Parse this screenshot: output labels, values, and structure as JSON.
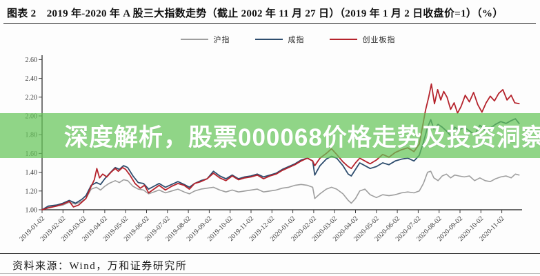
{
  "header": {
    "title": "图表 2　2019 年-2020 年 A 股三大指数走势（截止 2002 年 11 月 27 日）（2019 年 1 月 2 日收盘价=1）（%）"
  },
  "overlay": {
    "text": "深度解析，股票000068价格走势及投资洞察",
    "band_color": "rgba(101,197,89,0.72)",
    "text_color": "#ffffff"
  },
  "footer": {
    "source": "资料来源：Wind，万和证券研究所"
  },
  "chart_data": {
    "type": "line",
    "title": "2019年-2020年A股三大指数走势",
    "xlabel": "",
    "ylabel": "",
    "grid": false,
    "legend_position": "top-center",
    "ylim": [
      1.0,
      2.6
    ],
    "y_ticks": [
      "1.00",
      "1.20",
      "1.40",
      "1.60",
      "1.80",
      "2.00",
      "2.20",
      "2.40",
      "2.60"
    ],
    "x_tick_labels": [
      "2019-01-02",
      "2019-02-02",
      "2019-03-02",
      "2019-04-02",
      "2019-05-02",
      "2019-06-02",
      "2019-07-02",
      "2019-08-02",
      "2019-09-02",
      "2019-10-02",
      "2019-11-02",
      "2019-12-02",
      "2020-01-02",
      "2020-02-02",
      "2020-03-02",
      "2020-04-02",
      "2020-05-02",
      "2020-06-02",
      "2020-07-02",
      "2020-08-02",
      "2020-09-02",
      "2020-10-02",
      "2020-11-02"
    ],
    "x_unit": "months since 2019-01-02",
    "series": [
      {
        "name": "沪指",
        "color": "#9e9e9e",
        "width": 1.6,
        "points": [
          [
            0,
            1.0
          ],
          [
            0.3,
            1.03
          ],
          [
            0.7,
            1.04
          ],
          [
            1.0,
            1.05
          ],
          [
            1.3,
            1.08
          ],
          [
            1.6,
            1.06
          ],
          [
            1.9,
            1.09
          ],
          [
            2.1,
            1.12
          ],
          [
            2.35,
            1.22
          ],
          [
            2.6,
            1.24
          ],
          [
            2.8,
            1.21
          ],
          [
            3.0,
            1.25
          ],
          [
            3.2,
            1.28
          ],
          [
            3.5,
            1.31
          ],
          [
            3.7,
            1.29
          ],
          [
            3.9,
            1.32
          ],
          [
            4.1,
            1.31
          ],
          [
            4.35,
            1.25
          ],
          [
            4.6,
            1.22
          ],
          [
            4.85,
            1.21
          ],
          [
            5.1,
            1.17
          ],
          [
            5.35,
            1.19
          ],
          [
            5.6,
            1.21
          ],
          [
            5.9,
            1.18
          ],
          [
            6.2,
            1.2
          ],
          [
            6.5,
            1.22
          ],
          [
            6.8,
            1.19
          ],
          [
            7.05,
            1.17
          ],
          [
            7.3,
            1.2
          ],
          [
            7.6,
            1.22
          ],
          [
            7.9,
            1.23
          ],
          [
            8.2,
            1.24
          ],
          [
            8.5,
            1.21
          ],
          [
            8.8,
            1.19
          ],
          [
            9.1,
            1.21
          ],
          [
            9.4,
            1.19
          ],
          [
            9.7,
            1.2
          ],
          [
            10.0,
            1.21
          ],
          [
            10.3,
            1.22
          ],
          [
            10.6,
            1.19
          ],
          [
            10.9,
            1.2
          ],
          [
            11.2,
            1.21
          ],
          [
            11.5,
            1.23
          ],
          [
            11.8,
            1.24
          ],
          [
            12.1,
            1.26
          ],
          [
            12.4,
            1.27
          ],
          [
            12.7,
            1.26
          ],
          [
            12.95,
            1.24
          ],
          [
            13.05,
            1.12
          ],
          [
            13.3,
            1.17
          ],
          [
            13.6,
            1.22
          ],
          [
            13.85,
            1.24
          ],
          [
            14.1,
            1.22
          ],
          [
            14.4,
            1.17
          ],
          [
            14.65,
            1.1
          ],
          [
            14.8,
            1.07
          ],
          [
            15.0,
            1.12
          ],
          [
            15.2,
            1.2
          ],
          [
            15.45,
            1.22
          ],
          [
            15.7,
            1.16
          ],
          [
            16.0,
            1.13
          ],
          [
            16.3,
            1.16
          ],
          [
            16.6,
            1.15
          ],
          [
            16.9,
            1.16
          ],
          [
            17.2,
            1.18
          ],
          [
            17.5,
            1.19
          ],
          [
            17.8,
            1.18
          ],
          [
            18.05,
            1.2
          ],
          [
            18.25,
            1.28
          ],
          [
            18.45,
            1.4
          ],
          [
            18.6,
            1.41
          ],
          [
            18.75,
            1.34
          ],
          [
            18.95,
            1.31
          ],
          [
            19.15,
            1.36
          ],
          [
            19.35,
            1.38
          ],
          [
            19.55,
            1.34
          ],
          [
            19.75,
            1.37
          ],
          [
            19.95,
            1.36
          ],
          [
            20.2,
            1.35
          ],
          [
            20.45,
            1.36
          ],
          [
            20.7,
            1.31
          ],
          [
            20.95,
            1.34
          ],
          [
            21.2,
            1.31
          ],
          [
            21.45,
            1.3
          ],
          [
            21.7,
            1.33
          ],
          [
            21.95,
            1.35
          ],
          [
            22.2,
            1.36
          ],
          [
            22.45,
            1.34
          ],
          [
            22.65,
            1.38
          ],
          [
            22.83,
            1.37
          ]
        ]
      },
      {
        "name": "成指",
        "color": "#2e4d6e",
        "width": 1.8,
        "points": [
          [
            0,
            1.0
          ],
          [
            0.3,
            1.04
          ],
          [
            0.7,
            1.05
          ],
          [
            1.0,
            1.07
          ],
          [
            1.3,
            1.1
          ],
          [
            1.6,
            1.07
          ],
          [
            1.9,
            1.11
          ],
          [
            2.1,
            1.15
          ],
          [
            2.35,
            1.26
          ],
          [
            2.6,
            1.29
          ],
          [
            2.8,
            1.27
          ],
          [
            3.0,
            1.33
          ],
          [
            3.2,
            1.38
          ],
          [
            3.5,
            1.45
          ],
          [
            3.7,
            1.43
          ],
          [
            3.9,
            1.47
          ],
          [
            4.1,
            1.45
          ],
          [
            4.35,
            1.36
          ],
          [
            4.6,
            1.29
          ],
          [
            4.85,
            1.28
          ],
          [
            5.1,
            1.22
          ],
          [
            5.35,
            1.25
          ],
          [
            5.6,
            1.28
          ],
          [
            5.9,
            1.24
          ],
          [
            6.2,
            1.27
          ],
          [
            6.5,
            1.3
          ],
          [
            6.8,
            1.27
          ],
          [
            7.05,
            1.24
          ],
          [
            7.3,
            1.28
          ],
          [
            7.6,
            1.31
          ],
          [
            7.9,
            1.33
          ],
          [
            8.2,
            1.41
          ],
          [
            8.5,
            1.36
          ],
          [
            8.8,
            1.33
          ],
          [
            9.1,
            1.37
          ],
          [
            9.4,
            1.33
          ],
          [
            9.7,
            1.35
          ],
          [
            10.0,
            1.36
          ],
          [
            10.3,
            1.38
          ],
          [
            10.6,
            1.35
          ],
          [
            10.9,
            1.37
          ],
          [
            11.2,
            1.39
          ],
          [
            11.5,
            1.43
          ],
          [
            11.8,
            1.46
          ],
          [
            12.1,
            1.49
          ],
          [
            12.4,
            1.53
          ],
          [
            12.7,
            1.55
          ],
          [
            12.95,
            1.52
          ],
          [
            13.05,
            1.37
          ],
          [
            13.3,
            1.47
          ],
          [
            13.6,
            1.54
          ],
          [
            13.85,
            1.57
          ],
          [
            14.1,
            1.55
          ],
          [
            14.4,
            1.47
          ],
          [
            14.65,
            1.38
          ],
          [
            14.8,
            1.36
          ],
          [
            15.0,
            1.43
          ],
          [
            15.2,
            1.5
          ],
          [
            15.45,
            1.47
          ],
          [
            15.7,
            1.44
          ],
          [
            16.0,
            1.46
          ],
          [
            16.3,
            1.5
          ],
          [
            16.6,
            1.48
          ],
          [
            16.9,
            1.52
          ],
          [
            17.2,
            1.54
          ],
          [
            17.5,
            1.55
          ],
          [
            17.8,
            1.52
          ],
          [
            18.05,
            1.58
          ],
          [
            18.25,
            1.72
          ],
          [
            18.45,
            1.88
          ],
          [
            18.6,
            1.96
          ],
          [
            18.75,
            1.86
          ],
          [
            18.95,
            1.91
          ],
          [
            19.15,
            1.88
          ],
          [
            19.35,
            1.84
          ],
          [
            19.55,
            1.79
          ],
          [
            19.75,
            1.88
          ],
          [
            19.95,
            1.85
          ],
          [
            20.2,
            1.88
          ],
          [
            20.45,
            1.84
          ],
          [
            20.7,
            1.8
          ],
          [
            20.95,
            1.9
          ],
          [
            21.2,
            1.85
          ],
          [
            21.45,
            1.87
          ],
          [
            21.7,
            1.91
          ],
          [
            21.95,
            1.94
          ],
          [
            22.2,
            1.92
          ],
          [
            22.45,
            1.95
          ],
          [
            22.65,
            1.97
          ],
          [
            22.83,
            1.92
          ]
        ]
      },
      {
        "name": "创业板指",
        "color": "#b5232c",
        "width": 1.8,
        "points": [
          [
            0,
            1.0
          ],
          [
            0.3,
            1.02
          ],
          [
            0.7,
            1.04
          ],
          [
            1.0,
            1.06
          ],
          [
            1.3,
            1.09
          ],
          [
            1.5,
            1.03
          ],
          [
            1.75,
            1.05
          ],
          [
            1.9,
            1.08
          ],
          [
            2.1,
            1.12
          ],
          [
            2.35,
            1.25
          ],
          [
            2.5,
            1.32
          ],
          [
            2.62,
            1.44
          ],
          [
            2.75,
            1.34
          ],
          [
            2.9,
            1.38
          ],
          [
            3.1,
            1.35
          ],
          [
            3.3,
            1.4
          ],
          [
            3.5,
            1.44
          ],
          [
            3.65,
            1.41
          ],
          [
            3.85,
            1.45
          ],
          [
            4.0,
            1.43
          ],
          [
            4.2,
            1.37
          ],
          [
            4.45,
            1.28
          ],
          [
            4.7,
            1.23
          ],
          [
            4.9,
            1.26
          ],
          [
            5.1,
            1.18
          ],
          [
            5.35,
            1.22
          ],
          [
            5.6,
            1.26
          ],
          [
            5.9,
            1.21
          ],
          [
            6.2,
            1.25
          ],
          [
            6.5,
            1.28
          ],
          [
            6.8,
            1.26
          ],
          [
            7.05,
            1.22
          ],
          [
            7.3,
            1.28
          ],
          [
            7.6,
            1.3
          ],
          [
            7.9,
            1.33
          ],
          [
            8.2,
            1.39
          ],
          [
            8.5,
            1.34
          ],
          [
            8.8,
            1.31
          ],
          [
            9.1,
            1.36
          ],
          [
            9.4,
            1.32
          ],
          [
            9.7,
            1.34
          ],
          [
            10.0,
            1.35
          ],
          [
            10.3,
            1.37
          ],
          [
            10.6,
            1.33
          ],
          [
            10.9,
            1.36
          ],
          [
            11.2,
            1.38
          ],
          [
            11.5,
            1.42
          ],
          [
            11.8,
            1.45
          ],
          [
            12.1,
            1.48
          ],
          [
            12.4,
            1.52
          ],
          [
            12.7,
            1.55
          ],
          [
            12.95,
            1.52
          ],
          [
            13.05,
            1.47
          ],
          [
            13.3,
            1.55
          ],
          [
            13.6,
            1.6
          ],
          [
            13.85,
            1.65
          ],
          [
            14.1,
            1.59
          ],
          [
            14.4,
            1.51
          ],
          [
            14.65,
            1.46
          ],
          [
            14.8,
            1.44
          ],
          [
            15.0,
            1.5
          ],
          [
            15.2,
            1.55
          ],
          [
            15.45,
            1.52
          ],
          [
            15.7,
            1.49
          ],
          [
            16.0,
            1.53
          ],
          [
            16.3,
            1.59
          ],
          [
            16.6,
            1.56
          ],
          [
            16.9,
            1.61
          ],
          [
            17.2,
            1.64
          ],
          [
            17.5,
            1.66
          ],
          [
            17.8,
            1.62
          ],
          [
            18.05,
            1.7
          ],
          [
            18.2,
            1.88
          ],
          [
            18.35,
            2.06
          ],
          [
            18.5,
            2.2
          ],
          [
            18.63,
            2.34
          ],
          [
            18.78,
            2.13
          ],
          [
            18.93,
            2.28
          ],
          [
            19.08,
            2.17
          ],
          [
            19.22,
            2.26
          ],
          [
            19.38,
            2.2
          ],
          [
            19.55,
            2.07
          ],
          [
            19.72,
            2.14
          ],
          [
            19.88,
            2.03
          ],
          [
            20.05,
            2.1
          ],
          [
            20.25,
            2.22
          ],
          [
            20.45,
            2.15
          ],
          [
            20.65,
            2.25
          ],
          [
            20.85,
            2.12
          ],
          [
            21.05,
            2.04
          ],
          [
            21.25,
            2.14
          ],
          [
            21.45,
            2.21
          ],
          [
            21.65,
            2.16
          ],
          [
            21.85,
            2.24
          ],
          [
            22.05,
            2.28
          ],
          [
            22.25,
            2.17
          ],
          [
            22.45,
            2.22
          ],
          [
            22.62,
            2.14
          ],
          [
            22.83,
            2.13
          ]
        ]
      }
    ]
  }
}
